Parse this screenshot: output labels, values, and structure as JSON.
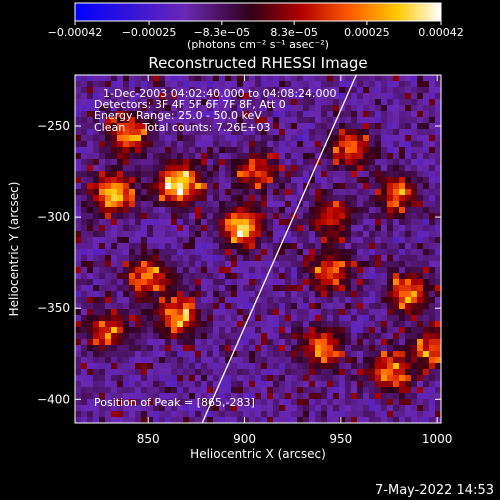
{
  "chart_data": {
    "type": "heatmap",
    "title": "Reconstructed RHESSI Image",
    "xlabel": "Heliocentric X (arcsec)",
    "ylabel": "Heliocentric Y (arcsec)",
    "xlim": [
      812,
      1002
    ],
    "ylim": [
      -413,
      -222
    ],
    "x_ticks": [
      850,
      900,
      950,
      1000
    ],
    "x_tick_labels": [
      "850",
      "900",
      "950",
      "1000"
    ],
    "y_ticks": [
      -250,
      -300,
      -350,
      -400
    ],
    "y_tick_labels": [
      "−250",
      "−300",
      "−350",
      "−400"
    ],
    "colorbar": {
      "range": [
        -0.00042,
        0.00042
      ],
      "ticks": [
        -0.00042,
        -0.00025,
        -8.3e-05,
        8.3e-05,
        0.00025,
        0.00042
      ],
      "tick_labels": [
        "−0.00042",
        "−0.00025",
        "−8.3e−05",
        "8.3e−05",
        "0.00025",
        "0.00042"
      ],
      "units_label": "(photons cm⁻² s⁻¹ asec⁻²)",
      "colormap": [
        "#0000ff",
        "#6a28b4",
        "#300018",
        "#b40000",
        "#ff5a00",
        "#ffc800",
        "#ffffff"
      ]
    },
    "annotations": {
      "time_range": "1-Dec-2003 04:02:40.000 to 04:08:24.000",
      "detectors": "Detectors: 3F 4F 5F 6F 7F 8F, Att 0",
      "energy": "Energy Range: 25.0 - 50.0 keV",
      "clean": "Clean     Total counts: 7.26E+03",
      "peak": "Position of Peak = [865,-283]"
    },
    "peak_position": [
      865,
      -283
    ],
    "limb_line": "white solar-limb line crossing the image",
    "hotspots": [
      {
        "x": 866,
        "y": -282,
        "intensity": 1.0
      },
      {
        "x": 832,
        "y": -287,
        "intensity": 0.9
      },
      {
        "x": 840,
        "y": -255,
        "intensity": 0.75
      },
      {
        "x": 898,
        "y": -305,
        "intensity": 0.9
      },
      {
        "x": 906,
        "y": -275,
        "intensity": 0.55
      },
      {
        "x": 850,
        "y": -332,
        "intensity": 0.7
      },
      {
        "x": 865,
        "y": -355,
        "intensity": 0.72
      },
      {
        "x": 829,
        "y": -362,
        "intensity": 0.6
      },
      {
        "x": 955,
        "y": -262,
        "intensity": 0.65
      },
      {
        "x": 945,
        "y": -300,
        "intensity": 0.55
      },
      {
        "x": 980,
        "y": -287,
        "intensity": 0.6
      },
      {
        "x": 945,
        "y": -330,
        "intensity": 0.65
      },
      {
        "x": 985,
        "y": -342,
        "intensity": 0.7
      },
      {
        "x": 940,
        "y": -372,
        "intensity": 0.7
      },
      {
        "x": 975,
        "y": -385,
        "intensity": 0.65
      },
      {
        "x": 998,
        "y": -372,
        "intensity": 0.6
      }
    ]
  },
  "footer": {
    "date": "7-May-2022 14:53"
  }
}
